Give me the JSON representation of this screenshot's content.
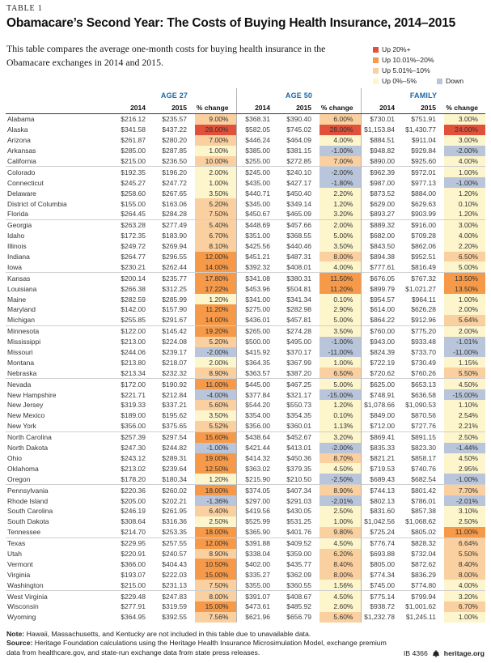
{
  "header": {
    "table_label": "TABLE 1",
    "title": "Obamacare’s Second Year: The Costs of Buying Health Insurance, 2014–2015",
    "subtitle": "This table compares the average one-month costs for buying health insurance in the Obamacare exchanges in 2014 and 2015."
  },
  "legend": {
    "items": [
      {
        "label": "Up 20%+",
        "color": "#e1503a",
        "class": "c-up20"
      },
      {
        "label": "Up 10.01%–20%",
        "color": "#f69a49",
        "class": "c-up10"
      },
      {
        "label": "Up 5.01%–10%",
        "color": "#fad0a0",
        "class": "c-up5"
      },
      {
        "label": "Up 0%–5%",
        "color": "#fdf5cc",
        "class": "c-up0"
      }
    ],
    "down": {
      "label": "Down",
      "color": "#b9c5da",
      "class": "c-down"
    }
  },
  "chart_data": {
    "type": "table",
    "title": "Obamacare’s Second Year: The Costs of Buying Health Insurance, 2014–2015",
    "groups": [
      "AGE 27",
      "AGE 50",
      "FAMILY"
    ],
    "sub_columns": [
      "2014",
      "2015",
      "% change"
    ],
    "color_rule": "pct>20 red; 10.01–20 orange; 5.01–10 light orange; 0–5 pale yellow; negative blue",
    "rows": [
      [
        "Alabama",
        "$216.12",
        "$235.57",
        "9.00%",
        "$368.31",
        "$390.40",
        "6.00%",
        "$730.01",
        "$751.91",
        "3.00%"
      ],
      [
        "Alaska",
        "$341.58",
        "$437.22",
        "28.00%",
        "$582.05",
        "$745.02",
        "28.00%",
        "$1,153.84",
        "$1,430.77",
        "24.00%"
      ],
      [
        "Arizona",
        "$261.87",
        "$280.20",
        "7.00%",
        "$446.24",
        "$464.09",
        "4.00%",
        "$884.51",
        "$911.04",
        "3.00%"
      ],
      [
        "Arkansas",
        "$285.00",
        "$287.85",
        "1.00%",
        "$385.00",
        "$381.15",
        "-1.00%",
        "$948.82",
        "$929.84",
        "-2.00%"
      ],
      [
        "California",
        "$215.00",
        "$236.50",
        "10.00%",
        "$255.00",
        "$272.85",
        "7.00%",
        "$890.00",
        "$925.60",
        "4.00%"
      ],
      [
        "Colorado",
        "$192.35",
        "$196.20",
        "2.00%",
        "$245.00",
        "$240.10",
        "-2.00%",
        "$962.39",
        "$972.01",
        "1.00%"
      ],
      [
        "Connecticut",
        "$245.27",
        "$247.72",
        "1.00%",
        "$435.00",
        "$427.17",
        "-1.80%",
        "$987.00",
        "$977.13",
        "-1.00%"
      ],
      [
        "Delaware",
        "$258.60",
        "$267.65",
        "3.50%",
        "$440.71",
        "$450.40",
        "2.20%",
        "$873.52",
        "$884.00",
        "1.20%"
      ],
      [
        "District of Columbia",
        "$155.00",
        "$163.06",
        "5.20%",
        "$345.00",
        "$349.14",
        "1.20%",
        "$629.00",
        "$629.63",
        "0.10%"
      ],
      [
        "Florida",
        "$264.45",
        "$284.28",
        "7.50%",
        "$450.67",
        "$465.09",
        "3.20%",
        "$893.27",
        "$903.99",
        "1.20%"
      ],
      [
        "Georgia",
        "$263.28",
        "$277.49",
        "5.40%",
        "$448.69",
        "$457.66",
        "2.00%",
        "$889.32",
        "$916.00",
        "3.00%"
      ],
      [
        "Idaho",
        "$172.35",
        "$183.90",
        "6.70%",
        "$351.00",
        "$368.55",
        "5.00%",
        "$682.00",
        "$709.28",
        "4.00%"
      ],
      [
        "Illinois",
        "$249.72",
        "$269.94",
        "8.10%",
        "$425.56",
        "$440.46",
        "3.50%",
        "$843.50",
        "$862.06",
        "2.20%"
      ],
      [
        "Indiana",
        "$264.77",
        "$296.55",
        "12.00%",
        "$451.21",
        "$487.31",
        "8.00%",
        "$894.38",
        "$952.51",
        "6.50%"
      ],
      [
        "Iowa",
        "$230.21",
        "$262.44",
        "14.00%",
        "$392.32",
        "$408.01",
        "4.00%",
        "$777.61",
        "$816.49",
        "5.00%"
      ],
      [
        "Kansas",
        "$200.14",
        "$235.77",
        "17.80%",
        "$341.08",
        "$380.31",
        "11.50%",
        "$676.05",
        "$767.32",
        "13.50%"
      ],
      [
        "Louisiana",
        "$266.38",
        "$312.25",
        "17.22%",
        "$453.96",
        "$504.81",
        "11.20%",
        "$899.79",
        "$1,021.27",
        "13.50%"
      ],
      [
        "Maine",
        "$282.59",
        "$285.99",
        "1.20%",
        "$341.00",
        "$341.34",
        "0.10%",
        "$954.57",
        "$964.11",
        "1.00%"
      ],
      [
        "Maryland",
        "$142.00",
        "$157.90",
        "11.20%",
        "$275.00",
        "$282.98",
        "2.90%",
        "$614.00",
        "$626.28",
        "2.00%"
      ],
      [
        "Michigan",
        "$255.85",
        "$291.67",
        "14.00%",
        "$436.01",
        "$457.81",
        "5.00%",
        "$864.22",
        "$912.96",
        "5.64%"
      ],
      [
        "Minnesota",
        "$122.00",
        "$145.42",
        "19.20%",
        "$265.00",
        "$274.28",
        "3.50%",
        "$760.00",
        "$775.20",
        "2.00%"
      ],
      [
        "Mississippi",
        "$213.00",
        "$224.08",
        "5.20%",
        "$500.00",
        "$495.00",
        "-1.00%",
        "$943.00",
        "$933.48",
        "-1.01%"
      ],
      [
        "Missouri",
        "$244.06",
        "$239.17",
        "-2.00%",
        "$415.92",
        "$370.17",
        "-11.00%",
        "$824.39",
        "$733.70",
        "-11.00%"
      ],
      [
        "Montana",
        "$213.80",
        "$218.07",
        "2.00%",
        "$364.35",
        "$367.99",
        "1.00%",
        "$722.19",
        "$730.49",
        "1.15%"
      ],
      [
        "Nebraska",
        "$213.34",
        "$232.32",
        "8.90%",
        "$363.57",
        "$387.20",
        "6.50%",
        "$720.62",
        "$760.26",
        "5.50%"
      ],
      [
        "Nevada",
        "$172.00",
        "$190.92",
        "11.00%",
        "$445.00",
        "$467.25",
        "5.00%",
        "$625.00",
        "$653.13",
        "4.50%"
      ],
      [
        "New Hampshire",
        "$221.71",
        "$212.84",
        "-4.00%",
        "$377.84",
        "$321.17",
        "-15.00%",
        "$748.91",
        "$636.58",
        "-15.00%"
      ],
      [
        "New Jersey",
        "$319.33",
        "$337.21",
        "5.60%",
        "$544.20",
        "$550.73",
        "1.20%",
        "$1,078.66",
        "$1,090.53",
        "1.10%"
      ],
      [
        "New Mexico",
        "$189.00",
        "$195.62",
        "3.50%",
        "$354.00",
        "$354.35",
        "0.10%",
        "$849.00",
        "$870.56",
        "2.54%"
      ],
      [
        "New York",
        "$356.00",
        "$375.65",
        "5.52%",
        "$356.00",
        "$360.01",
        "1.13%",
        "$712.00",
        "$727.76",
        "2.21%"
      ],
      [
        "North Carolina",
        "$257.39",
        "$297.54",
        "15.60%",
        "$438.64",
        "$452.67",
        "3.20%",
        "$869.41",
        "$891.15",
        "2.50%"
      ],
      [
        "North Dakota",
        "$247.30",
        "$244.82",
        "-1.00%",
        "$421.44",
        "$413.01",
        "-2.00%",
        "$835.33",
        "$823.30",
        "-1.44%"
      ],
      [
        "Ohio",
        "$243.12",
        "$289.31",
        "19.00%",
        "$414.32",
        "$450.36",
        "8.70%",
        "$821.21",
        "$858.17",
        "4.50%"
      ],
      [
        "Oklahoma",
        "$213.02",
        "$239.64",
        "12.50%",
        "$363.02",
        "$379.35",
        "4.50%",
        "$719.53",
        "$740.76",
        "2.95%"
      ],
      [
        "Oregon",
        "$178.20",
        "$180.34",
        "1.20%",
        "$215.90",
        "$210.50",
        "-2.50%",
        "$689.43",
        "$682.54",
        "-1.00%"
      ],
      [
        "Pennsylvania",
        "$220.36",
        "$260.02",
        "18.00%",
        "$374.05",
        "$407.34",
        "8.90%",
        "$744.13",
        "$801.42",
        "7.70%"
      ],
      [
        "Rhode Island",
        "$205.00",
        "$202.21",
        "-1.36%",
        "$297.00",
        "$291.03",
        "-2.01%",
        "$802.13",
        "$786.01",
        "-2.01%"
      ],
      [
        "South Carolina",
        "$246.19",
        "$261.95",
        "6.40%",
        "$419.56",
        "$430.05",
        "2.50%",
        "$831.60",
        "$857.38",
        "3.10%"
      ],
      [
        "South Dakota",
        "$308.64",
        "$316.36",
        "2.50%",
        "$525.99",
        "$531.25",
        "1.00%",
        "$1,042.56",
        "$1,068.62",
        "2.50%"
      ],
      [
        "Tennessee",
        "$214.70",
        "$253.35",
        "18.00%",
        "$365.90",
        "$401.76",
        "9.80%",
        "$725.24",
        "$805.02",
        "11.00%"
      ],
      [
        "Texas",
        "$229.95",
        "$257.55",
        "12.00%",
        "$391.88",
        "$409.52",
        "4.50%",
        "$776.74",
        "$828.32",
        "6.64%"
      ],
      [
        "Utah",
        "$220.91",
        "$240.57",
        "8.90%",
        "$338.04",
        "$359.00",
        "6.20%",
        "$693.88",
        "$732.04",
        "5.50%"
      ],
      [
        "Vermont",
        "$366.00",
        "$404.43",
        "10.50%",
        "$402.00",
        "$435.77",
        "8.40%",
        "$805.00",
        "$872.62",
        "8.40%"
      ],
      [
        "Virginia",
        "$193.07",
        "$222.03",
        "15.00%",
        "$335.27",
        "$362.09",
        "8.00%",
        "$774.34",
        "$836.29",
        "8.00%"
      ],
      [
        "Washington",
        "$215.00",
        "$231.13",
        "7.50%",
        "$355.00",
        "$360.55",
        "1.56%",
        "$745.00",
        "$774.80",
        "4.00%"
      ],
      [
        "West Virginia",
        "$229.48",
        "$247.83",
        "8.00%",
        "$391.07",
        "$408.67",
        "4.50%",
        "$775.14",
        "$799.94",
        "3.20%"
      ],
      [
        "Wisconsin",
        "$277.91",
        "$319.59",
        "15.00%",
        "$473.61",
        "$485.92",
        "2.60%",
        "$938.72",
        "$1,001.62",
        "6.70%"
      ],
      [
        "Wyoming",
        "$364.95",
        "$392.55",
        "7.56%",
        "$621.96",
        "$656.79",
        "5.60%",
        "$1,232.78",
        "$1,245.11",
        "1.00%"
      ]
    ]
  },
  "footer": {
    "note_label": "Note:",
    "note": " Hawaii, Massachusetts, and Kentucky are not included in this table due to unavailable data.",
    "source_label": "Source:",
    "source": " Heritage Foundation calculations using the Heritage Health Insurance Microsimulation Model, exchange premium data from healthcare.gov, and state-run exchange data from state press releases.",
    "doc_id": "IB 4366",
    "site": "heritage.org"
  }
}
